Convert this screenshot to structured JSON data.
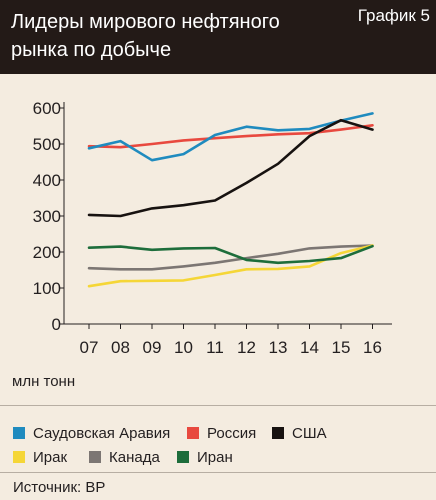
{
  "header": {
    "title": "Лидеры мирового нефтяного рынка по добыче",
    "badge": "График 5",
    "background": "#231a17"
  },
  "chart_data": {
    "type": "line",
    "title": "Лидеры мирового нефтяного рынка по добыче",
    "unit_label": "млн тонн",
    "x": [
      "07",
      "08",
      "09",
      "10",
      "11",
      "12",
      "13",
      "14",
      "15",
      "16"
    ],
    "ylim": [
      0,
      600
    ],
    "yticks": [
      0,
      100,
      200,
      300,
      400,
      500,
      600
    ],
    "grid": false,
    "legend_position": "bottom",
    "series": [
      {
        "name": "Саудовская Аравия",
        "color": "#1f8bbf",
        "values": [
          488,
          508,
          455,
          472,
          525,
          548,
          538,
          542,
          565,
          585
        ]
      },
      {
        "name": "Россия",
        "color": "#e8493f",
        "values": [
          494,
          491,
          500,
          510,
          516,
          522,
          527,
          530,
          540,
          552
        ]
      },
      {
        "name": "США",
        "color": "#171210",
        "values": [
          303,
          300,
          321,
          330,
          343,
          392,
          445,
          522,
          566,
          540
        ]
      },
      {
        "name": "Ирак",
        "color": "#f5d637",
        "values": [
          105,
          119,
          120,
          121,
          136,
          152,
          153,
          160,
          197,
          218
        ]
      },
      {
        "name": "Канада",
        "color": "#7c7673",
        "values": [
          155,
          152,
          152,
          160,
          170,
          183,
          195,
          210,
          215,
          218
        ]
      },
      {
        "name": "Иран",
        "color": "#1d6d3b",
        "values": [
          212,
          215,
          206,
          210,
          211,
          178,
          170,
          175,
          183,
          216
        ]
      }
    ]
  },
  "footer": {
    "source": "Источник: BP"
  }
}
